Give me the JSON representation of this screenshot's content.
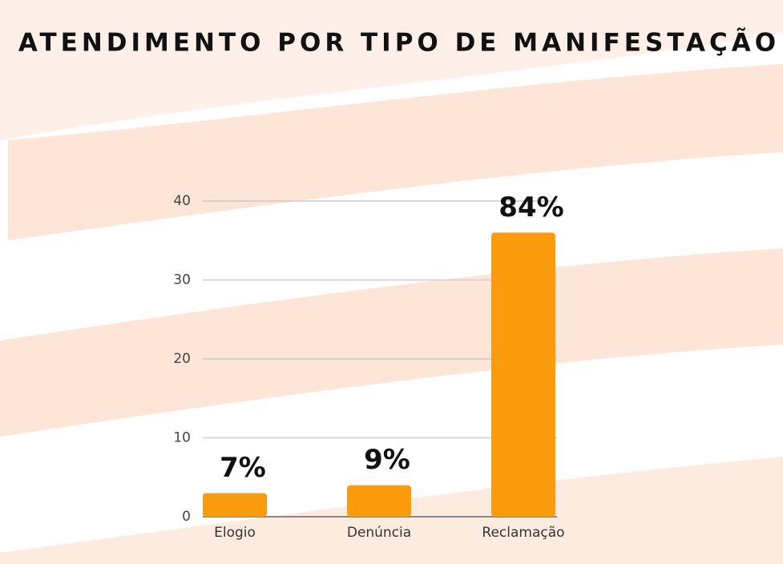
{
  "chart_data": {
    "type": "bar",
    "title": "ATENDIMENTO POR TIPO DE MANIFESTAÇÃO",
    "categories": [
      "Elogio",
      "Denúncia",
      "Reclamação"
    ],
    "values": [
      3,
      4,
      36
    ],
    "share_labels": [
      "7%",
      "9%",
      "84%"
    ],
    "color": "#fb9c0f",
    "ylim": [
      0,
      40
    ],
    "yticks": [
      0,
      10,
      20,
      30,
      40
    ],
    "grid": true
  }
}
